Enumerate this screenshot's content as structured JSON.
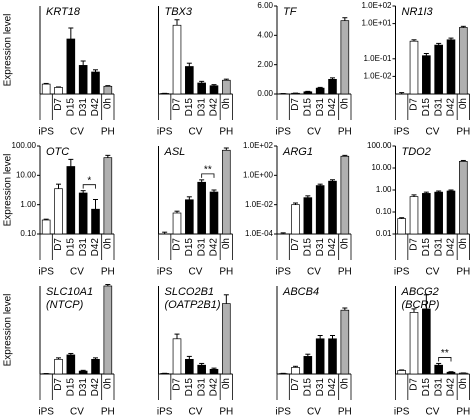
{
  "chart_data": [
    {
      "type": "bar",
      "title": "KRT18",
      "ylabel": "Expression level",
      "categories": [
        null,
        "D7",
        "D15",
        "D31",
        "D42",
        "0h"
      ],
      "groups": [
        "iPS",
        "CV",
        "PH"
      ],
      "values": [
        0.45,
        0.3,
        2.5,
        1.3,
        1.0,
        0.35
      ],
      "errors": [
        0.03,
        0.02,
        0.5,
        0.2,
        0.1,
        0.03
      ],
      "bar_colors": [
        "#ffffff",
        "#ffffff",
        "#000000",
        "#000000",
        "#000000",
        "#b0b0b0"
      ],
      "log": false,
      "ylim": [
        0,
        4
      ]
    },
    {
      "type": "bar",
      "title": "TBX3",
      "categories": [
        null,
        "D7",
        "D15",
        "D31",
        "D42",
        "0h"
      ],
      "groups": [
        "iPS",
        "CV",
        "PH"
      ],
      "values": [
        0.1,
        12.5,
        5,
        2,
        1.5,
        2.5
      ],
      "errors": [
        0.02,
        1,
        0.6,
        0.3,
        0.2,
        0.2
      ],
      "bar_colors": [
        "#ffffff",
        "#ffffff",
        "#000000",
        "#000000",
        "#000000",
        "#b0b0b0"
      ],
      "log": false,
      "ylim": [
        0,
        16
      ]
    },
    {
      "type": "bar",
      "title": "TF",
      "categories": [
        null,
        "D7",
        "D15",
        "D31",
        "D42",
        "0h"
      ],
      "groups": [
        "iPS",
        "CV",
        "PH"
      ],
      "values": [
        0.02,
        0.05,
        0.15,
        0.4,
        1.0,
        5.0
      ],
      "errors": [
        0.01,
        0.01,
        0.03,
        0.05,
        0.1,
        0.2
      ],
      "bar_colors": [
        "#ffffff",
        "#ffffff",
        "#000000",
        "#000000",
        "#000000",
        "#b0b0b0"
      ],
      "log": false,
      "ylim": [
        0,
        6
      ],
      "yticks": [
        {
          "value": 0,
          "label": "0.00"
        },
        {
          "value": 2,
          "label": "2.00"
        },
        {
          "value": 4,
          "label": "4.00"
        },
        {
          "value": 6,
          "label": "6.00"
        }
      ]
    },
    {
      "type": "bar",
      "title": "NR1I3",
      "categories": [
        null,
        "D7",
        "D15",
        "D31",
        "D42",
        "0h"
      ],
      "groups": [
        "iPS",
        "CV",
        "PH"
      ],
      "values": [
        0.001,
        1,
        0.15,
        0.6,
        1.2,
        6
      ],
      "errors": [
        0.0002,
        0.2,
        0.05,
        0.15,
        0.3,
        1
      ],
      "bar_colors": [
        "#ffffff",
        "#ffffff",
        "#000000",
        "#000000",
        "#000000",
        "#b0b0b0"
      ],
      "log": true,
      "ylim": [
        0.001,
        100
      ],
      "yticks": [
        {
          "value": 100,
          "label": "1.0E+02"
        },
        {
          "value": 10,
          "label": "1.0E+01"
        },
        {
          "value": 0.1,
          "label": "1.0E-01"
        },
        {
          "value": 0.01,
          "label": "1.0E-02"
        }
      ]
    },
    {
      "type": "bar",
      "title": "OTC",
      "ylabel": "Expression level",
      "categories": [
        null,
        "D7",
        "D15",
        "D31",
        "D42",
        "0h"
      ],
      "groups": [
        "iPS",
        "CV",
        "PH"
      ],
      "values": [
        0.3,
        3.5,
        20,
        2.5,
        0.7,
        40
      ],
      "errors": [
        0.02,
        1.5,
        15,
        0.5,
        0.8,
        8
      ],
      "bar_colors": [
        "#ffffff",
        "#ffffff",
        "#000000",
        "#000000",
        "#000000",
        "#b0b0b0"
      ],
      "log": true,
      "ylim": [
        0.1,
        100
      ],
      "yticks": [
        {
          "value": 100,
          "label": "100.00"
        },
        {
          "value": 10,
          "label": "10.00"
        },
        {
          "value": 1,
          "label": "1.00"
        },
        {
          "value": 0.1,
          "label": "0.10"
        }
      ],
      "annotations": [
        {
          "text": "*",
          "between": [
            "D31",
            "D42"
          ]
        }
      ]
    },
    {
      "type": "bar",
      "title": "ASL",
      "categories": [
        null,
        "D7",
        "D15",
        "D31",
        "D42",
        "0h"
      ],
      "groups": [
        "iPS",
        "CV",
        "PH"
      ],
      "values": [
        0.1,
        0.3,
        0.6,
        1.5,
        0.9,
        8
      ],
      "errors": [
        0.01,
        0.03,
        0.1,
        0.2,
        0.1,
        1
      ],
      "bar_colors": [
        "#ffffff",
        "#ffffff",
        "#000000",
        "#000000",
        "#000000",
        "#b0b0b0"
      ],
      "log": true,
      "ylim": [
        0.1,
        10
      ],
      "annotations": [
        {
          "text": "**",
          "between": [
            "D31",
            "D42"
          ]
        }
      ]
    },
    {
      "type": "bar",
      "title": "ARG1",
      "categories": [
        null,
        "D7",
        "D15",
        "D31",
        "D42",
        "0h"
      ],
      "groups": [
        "iPS",
        "CV",
        "PH"
      ],
      "values": [
        0.0001,
        0.01,
        0.03,
        0.2,
        0.4,
        20
      ],
      "errors": [
        2e-05,
        0.003,
        0.01,
        0.05,
        0.1,
        3
      ],
      "bar_colors": [
        "#ffffff",
        "#ffffff",
        "#000000",
        "#000000",
        "#000000",
        "#b0b0b0"
      ],
      "log": true,
      "ylim": [
        0.0001,
        100
      ],
      "yticks": [
        {
          "value": 100,
          "label": "1.0E+02"
        },
        {
          "value": 1,
          "label": "1.0E+00"
        },
        {
          "value": 0.01,
          "label": "1.0E-02"
        },
        {
          "value": 0.0001,
          "label": "1.0E-04"
        }
      ]
    },
    {
      "type": "bar",
      "title": "TDO2",
      "categories": [
        null,
        "D7",
        "D15",
        "D31",
        "D42",
        "0h"
      ],
      "groups": [
        "iPS",
        "CV",
        "PH"
      ],
      "values": [
        0.05,
        0.5,
        0.7,
        0.8,
        0.9,
        20
      ],
      "errors": [
        0.005,
        0.1,
        0.1,
        0.1,
        0.1,
        2
      ],
      "bar_colors": [
        "#ffffff",
        "#ffffff",
        "#000000",
        "#000000",
        "#000000",
        "#b0b0b0"
      ],
      "log": true,
      "ylim": [
        0.01,
        100
      ],
      "yticks": [
        {
          "value": 100,
          "label": "100.00"
        },
        {
          "value": 10,
          "label": "10.00"
        },
        {
          "value": 1,
          "label": "1.00"
        },
        {
          "value": 0.1,
          "label": "0.10"
        },
        {
          "value": 0.01,
          "label": "0.01"
        }
      ]
    },
    {
      "type": "bar",
      "title": "SLC10A1",
      "subtitle": "(NTCP)",
      "ylabel": "Expression level",
      "categories": [
        null,
        "D7",
        "D15",
        "D31",
        "D42",
        "0h"
      ],
      "groups": [
        "iPS",
        "CV",
        "PH"
      ],
      "values": [
        0.02,
        1.0,
        1.3,
        0.2,
        1.0,
        6
      ],
      "errors": [
        0.01,
        0.1,
        0.1,
        0.05,
        0.1,
        0.1
      ],
      "bar_colors": [
        "#ffffff",
        "#ffffff",
        "#000000",
        "#000000",
        "#000000",
        "#b0b0b0"
      ],
      "log": false,
      "ylim": [
        0,
        6
      ]
    },
    {
      "type": "bar",
      "title": "SLCO2B1",
      "subtitle": "(OATP2B1)",
      "categories": [
        null,
        "D7",
        "D15",
        "D31",
        "D42",
        "0h"
      ],
      "groups": [
        "iPS",
        "CV",
        "PH"
      ],
      "values": [
        0.1,
        6,
        2.5,
        1.5,
        0.8,
        12
      ],
      "errors": [
        0.02,
        0.8,
        0.5,
        0.3,
        0.2,
        1.5
      ],
      "bar_colors": [
        "#ffffff",
        "#ffffff",
        "#000000",
        "#000000",
        "#000000",
        "#b0b0b0"
      ],
      "log": false,
      "ylim": [
        0,
        15
      ]
    },
    {
      "type": "bar",
      "title": "ABCB4",
      "categories": [
        null,
        "D7",
        "D15",
        "D31",
        "D42",
        "0h"
      ],
      "groups": [
        "iPS",
        "CV",
        "PH"
      ],
      "values": [
        0.02,
        0.3,
        0.8,
        1.6,
        1.6,
        2.9
      ],
      "errors": [
        0.01,
        0.05,
        0.1,
        0.15,
        0.15,
        0.1
      ],
      "bar_colors": [
        "#ffffff",
        "#ffffff",
        "#000000",
        "#000000",
        "#000000",
        "#b0b0b0"
      ],
      "log": false,
      "ylim": [
        0,
        4
      ]
    },
    {
      "type": "bar",
      "title": "ABCG2",
      "subtitle": "(BCRP)",
      "categories": [
        null,
        "D7",
        "D15",
        "D31",
        "D42",
        "0h"
      ],
      "groups": [
        "iPS",
        "CV",
        "PH"
      ],
      "values": [
        2,
        35,
        37,
        5,
        1,
        0.5
      ],
      "errors": [
        0.3,
        2,
        8,
        1,
        0.3,
        0.1
      ],
      "bar_colors": [
        "#ffffff",
        "#ffffff",
        "#000000",
        "#000000",
        "#000000",
        "#b0b0b0"
      ],
      "log": false,
      "ylim": [
        0,
        50
      ],
      "annotations": [
        {
          "text": "**",
          "between": [
            "D31",
            "D42"
          ]
        }
      ]
    }
  ]
}
